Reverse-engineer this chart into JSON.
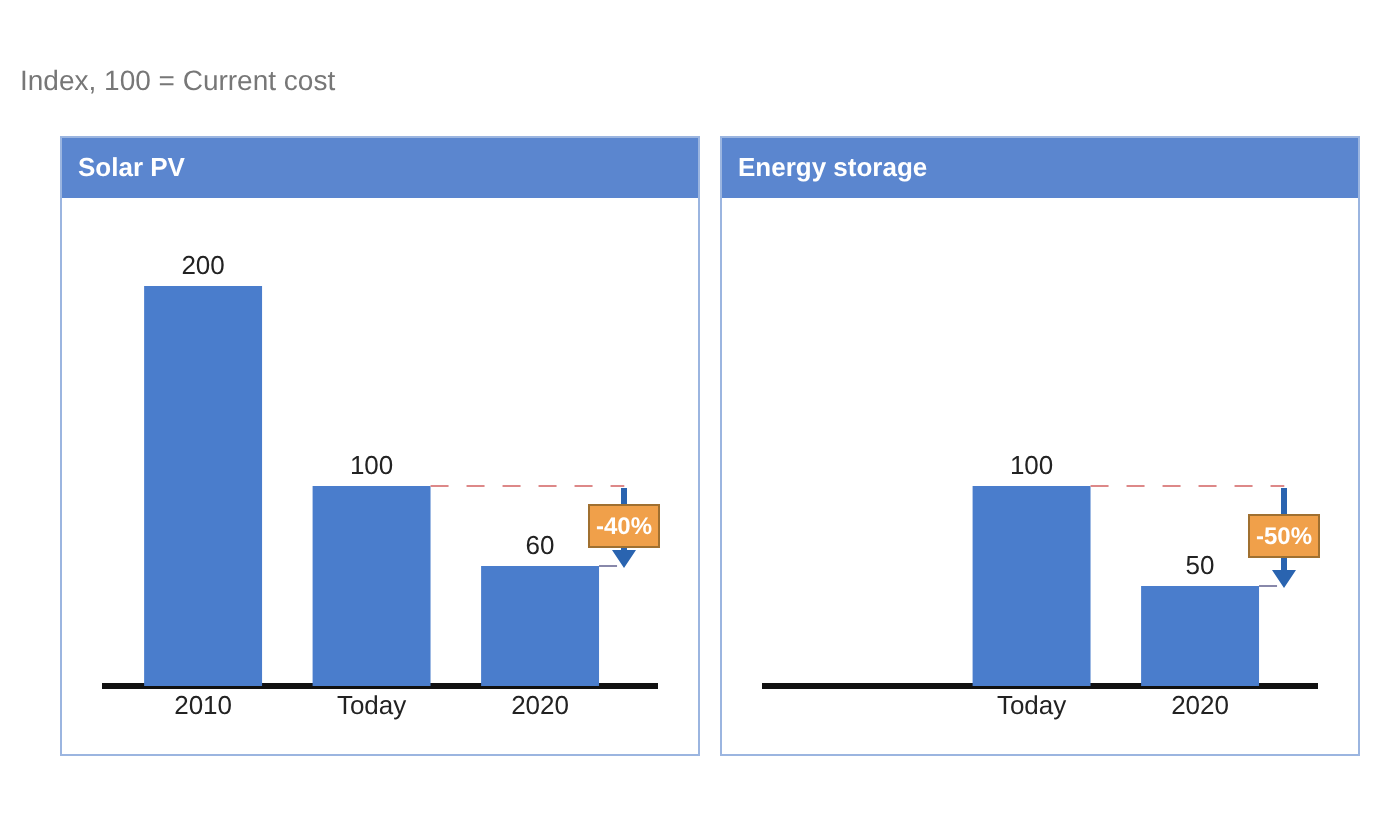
{
  "chart_data": [
    {
      "type": "bar",
      "subtitle": "Index, 100 = Current cost",
      "title": "Solar PV",
      "categories": [
        "2010",
        "Today",
        "2020"
      ],
      "values": [
        200,
        100,
        60
      ],
      "color": "#4a7dcc",
      "data_labels": true,
      "annotations": [
        "-40%"
      ]
    },
    {
      "type": "bar",
      "title": "Energy storage",
      "categories": [
        "Today",
        "2020"
      ],
      "values": [
        100,
        50
      ],
      "color": "#4a7dcc",
      "data_labels": true,
      "annotations": [
        "-50%"
      ]
    }
  ]
}
